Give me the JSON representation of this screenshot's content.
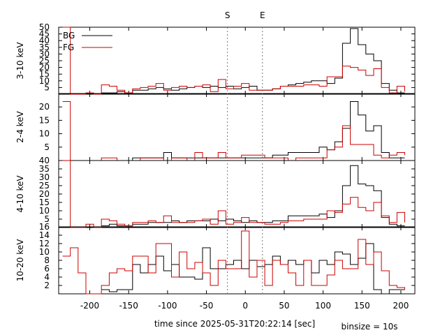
{
  "chart_data": {
    "type": "line",
    "step": true,
    "xlabel": "time since 2025-05-31T20:22:14 [sec]",
    "binsize_label": "binsize = 10s",
    "xlim": [
      -240,
      218
    ],
    "xticks": [
      -200,
      -150,
      -100,
      -50,
      0,
      50,
      100,
      150,
      200
    ],
    "markers": [
      {
        "label": "S",
        "x": -23
      },
      {
        "label": "E",
        "x": 22
      }
    ],
    "legend": {
      "placement": "top-left",
      "entries": [
        {
          "name": "BG",
          "color": "#000000"
        },
        {
          "name": "FG",
          "color": "#cc0000"
        }
      ]
    },
    "bin_edges": [
      -235,
      -225,
      -215,
      -205,
      -195,
      -185,
      -175,
      -165,
      -155,
      -145,
      -135,
      -125,
      -115,
      -105,
      -95,
      -85,
      -75,
      -65,
      -55,
      -45,
      -35,
      -25,
      -15,
      -5,
      5,
      15,
      25,
      35,
      45,
      55,
      65,
      75,
      85,
      95,
      105,
      115,
      125,
      135,
      145,
      155,
      165,
      175,
      185,
      195,
      205
    ],
    "panels": [
      {
        "ylabel": "3-10 keV",
        "ylim": [
          0,
          50
        ],
        "yticks": [
          5,
          10,
          15,
          20,
          25,
          30,
          35,
          40,
          45,
          50
        ],
        "series": [
          {
            "name": "BG",
            "color": "#000000",
            "values": [
              null,
              null,
              null,
              null,
              null,
              1,
              1,
              2,
              1,
              3,
              3,
              4,
              5,
              4,
              3,
              4,
              5,
              6,
              5,
              6,
              5,
              6,
              4,
              5,
              6,
              3,
              3,
              4,
              6,
              7,
              8,
              9,
              10,
              10,
              8,
              12,
              38,
              49,
              37,
              30,
              25,
              8,
              3,
              1
            ]
          },
          {
            "name": "FG",
            "color": "#cc0000",
            "values": [
              50,
              0,
              0,
              1,
              0,
              7,
              6,
              3,
              1,
              4,
              5,
              6,
              8,
              3,
              5,
              6,
              5,
              6,
              7,
              2,
              11,
              4,
              6,
              8,
              3,
              3,
              3,
              4,
              6,
              6,
              6,
              7,
              7,
              6,
              13,
              13,
              21,
              20,
              18,
              14,
              19,
              5,
              1,
              6,
              2
            ]
          }
        ]
      },
      {
        "ylabel": "2-4 keV",
        "ylim": [
          0,
          25
        ],
        "yticks": [
          5,
          10,
          15,
          20
        ],
        "series": [
          {
            "name": "BG",
            "color": "#000000",
            "values": [
              null,
              null,
              null,
              null,
              null,
              0,
              0,
              0,
              0,
              1,
              1,
              1,
              1,
              3,
              1,
              1,
              1,
              1,
              1,
              1,
              1,
              1,
              1,
              1,
              1,
              1,
              1,
              2,
              2,
              3,
              3,
              3,
              3,
              5,
              4,
              7,
              12,
              22,
              17,
              11,
              13,
              3,
              1,
              1
            ]
          },
          {
            "name": "FG",
            "color": "#cc0000",
            "values": [
              22,
              0,
              0,
              0,
              0,
              1,
              1,
              0,
              0,
              0,
              1,
              1,
              1,
              0,
              1,
              1,
              0,
              3,
              1,
              1,
              3,
              1,
              1,
              2,
              2,
              2,
              1,
              1,
              1,
              0,
              1,
              1,
              1,
              1,
              4,
              5,
              13,
              6,
              6,
              6,
              2,
              1,
              2,
              3,
              2
            ]
          }
        ]
      },
      {
        "ylabel": "4-10 keV",
        "ylim": [
          0,
          40
        ],
        "yticks": [
          5,
          10,
          15,
          20,
          25,
          30,
          35,
          40
        ],
        "series": [
          {
            "name": "BG",
            "color": "#000000",
            "values": [
              null,
              null,
              null,
              null,
              null,
              1,
              2,
              1,
              1,
              2,
              2,
              3,
              3,
              3,
              4,
              3,
              4,
              4,
              4,
              5,
              4,
              5,
              4,
              3,
              4,
              3,
              3,
              4,
              4,
              7,
              7,
              7,
              7,
              8,
              6,
              10,
              25,
              37,
              26,
              25,
              22,
              6,
              2,
              1,
              1
            ]
          },
          {
            "name": "FG",
            "color": "#cc0000",
            "values": [
              40,
              0,
              0,
              2,
              0,
              5,
              4,
              2,
              1,
              3,
              3,
              4,
              3,
              7,
              3,
              3,
              3,
              4,
              5,
              2,
              10,
              2,
              3,
              6,
              3,
              3,
              2,
              2,
              3,
              4,
              4,
              5,
              5,
              5,
              10,
              9,
              14,
              18,
              12,
              10,
              15,
              7,
              3,
              9,
              3
            ]
          }
        ]
      },
      {
        "ylabel": "10-20 keV",
        "ylim": [
          0,
          16
        ],
        "yticks": [
          2,
          4,
          6,
          8,
          10,
          12,
          14,
          16
        ],
        "series": [
          {
            "name": "BG",
            "color": "#000000",
            "values": [
              null,
              null,
              null,
              null,
              null,
              1,
              0.5,
              1,
              1,
              7,
              5,
              7,
              9,
              5.5,
              7,
              4,
              4,
              3.5,
              11,
              6,
              6,
              7,
              8,
              6,
              8,
              6.5,
              7,
              9,
              7,
              8,
              7,
              8,
              5,
              8,
              7,
              10,
              9.5,
              7,
              8.5,
              12,
              1,
              0,
              1,
              1
            ]
          },
          {
            "name": "FG",
            "color": "#cc0000",
            "values": [
              9,
              11,
              5,
              0,
              0,
              2,
              5,
              6,
              5.5,
              9,
              9,
              5,
              12,
              12,
              4,
              10,
              6,
              7.5,
              5,
              2,
              8,
              6,
              6,
              15,
              4,
              8,
              2,
              8,
              7,
              5,
              2,
              8,
              2,
              2,
              4.5,
              8,
              6,
              6,
              13,
              7,
              10,
              5.5,
              2,
              1.5,
              1
            ]
          }
        ]
      }
    ]
  }
}
